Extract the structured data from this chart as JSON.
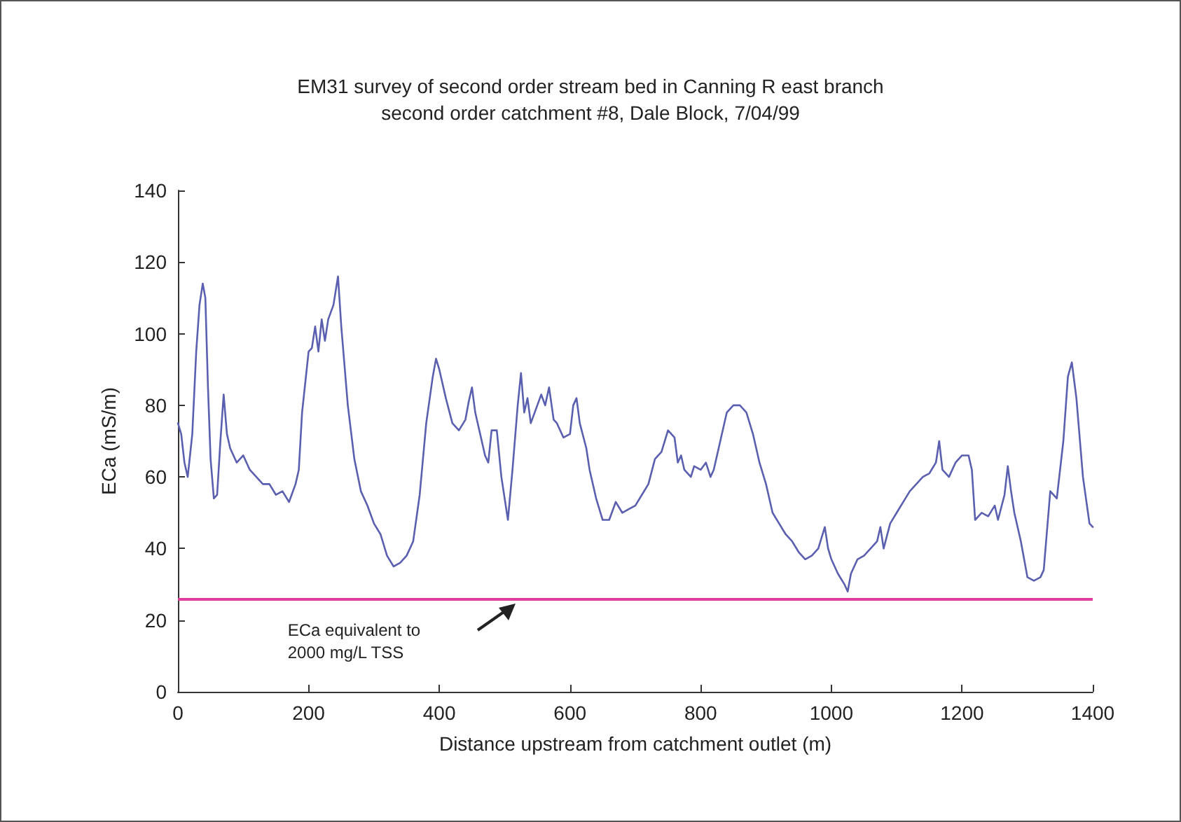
{
  "chart_data": {
    "type": "line",
    "title": "EM31 survey of second order stream bed in Canning R east branch\nsecond order catchment #8, Dale Block, 7/04/99",
    "xlabel": "Distance upstream from catchment outlet (m)",
    "ylabel": "ECa (mS/m)",
    "xlim": [
      0,
      1400
    ],
    "xticks": [
      0,
      200,
      400,
      600,
      800,
      1000,
      1200,
      1400
    ],
    "ylim": [
      0,
      140
    ],
    "yticks": [
      0,
      20,
      40,
      60,
      80,
      100,
      120,
      140
    ],
    "grid": false,
    "marker": "none",
    "line_style": "solid",
    "ref_lines": [
      {
        "axis": "y",
        "value": 26,
        "label": "ECa equivalent to\n2000 mg/L TSS",
        "color": "#e0409a"
      }
    ],
    "series": [
      {
        "color": "#5a5fb0",
        "x": [
          0,
          5,
          10,
          15,
          22,
          28,
          33,
          38,
          42,
          46,
          50,
          55,
          60,
          65,
          70,
          75,
          80,
          90,
          100,
          110,
          120,
          130,
          140,
          150,
          160,
          170,
          180,
          185,
          190,
          200,
          205,
          210,
          215,
          220,
          225,
          230,
          238,
          245,
          250,
          260,
          270,
          280,
          290,
          300,
          310,
          320,
          330,
          340,
          350,
          360,
          370,
          380,
          390,
          395,
          400,
          410,
          420,
          430,
          440,
          445,
          450,
          455,
          465,
          470,
          475,
          480,
          488,
          495,
          505,
          512,
          520,
          525,
          530,
          535,
          540,
          550,
          556,
          562,
          568,
          575,
          580,
          590,
          600,
          605,
          610,
          615,
          625,
          630,
          640,
          650,
          660,
          670,
          680,
          690,
          700,
          710,
          720,
          730,
          740,
          750,
          760,
          765,
          770,
          775,
          785,
          790,
          800,
          808,
          815,
          820,
          830,
          840,
          850,
          860,
          870,
          880,
          890,
          900,
          910,
          920,
          930,
          940,
          950,
          960,
          970,
          980,
          990,
          995,
          1000,
          1010,
          1020,
          1025,
          1030,
          1040,
          1050,
          1060,
          1070,
          1075,
          1080,
          1090,
          1100,
          1110,
          1120,
          1130,
          1140,
          1150,
          1160,
          1165,
          1170,
          1180,
          1190,
          1200,
          1210,
          1215,
          1220,
          1230,
          1240,
          1250,
          1255,
          1265,
          1270,
          1275,
          1280,
          1290,
          1300,
          1310,
          1320,
          1325,
          1335,
          1345,
          1355,
          1362,
          1368,
          1375,
          1385,
          1395,
          1400
        ],
        "values": [
          75,
          72,
          64,
          60,
          72,
          95,
          108,
          114,
          110,
          85,
          65,
          54,
          55,
          70,
          83,
          72,
          68,
          64,
          66,
          62,
          60,
          58,
          58,
          55,
          56,
          53,
          58,
          62,
          78,
          95,
          96,
          102,
          95,
          104,
          98,
          104,
          108,
          116,
          102,
          80,
          65,
          56,
          52,
          47,
          44,
          38,
          35,
          36,
          38,
          42,
          55,
          75,
          88,
          93,
          90,
          82,
          75,
          73,
          76,
          81,
          85,
          78,
          70,
          66,
          64,
          73,
          73,
          60,
          48,
          62,
          80,
          89,
          78,
          82,
          75,
          80,
          83,
          80,
          85,
          76,
          75,
          71,
          72,
          80,
          82,
          75,
          68,
          62,
          54,
          48,
          48,
          53,
          50,
          51,
          52,
          55,
          58,
          65,
          67,
          73,
          71,
          64,
          66,
          62,
          60,
          63,
          62,
          64,
          60,
          62,
          70,
          78,
          80,
          80,
          78,
          72,
          64,
          58,
          50,
          47,
          44,
          42,
          39,
          37,
          38,
          40,
          46,
          40,
          37,
          33,
          30,
          28,
          33,
          37,
          38,
          40,
          42,
          46,
          40,
          47,
          50,
          53,
          56,
          58,
          60,
          61,
          64,
          70,
          62,
          60,
          64,
          66,
          66,
          62,
          48,
          50,
          49,
          52,
          48,
          55,
          63,
          56,
          50,
          42,
          32,
          31,
          32,
          34,
          56,
          54,
          70,
          88,
          92,
          82,
          60,
          47,
          46
        ]
      }
    ]
  }
}
